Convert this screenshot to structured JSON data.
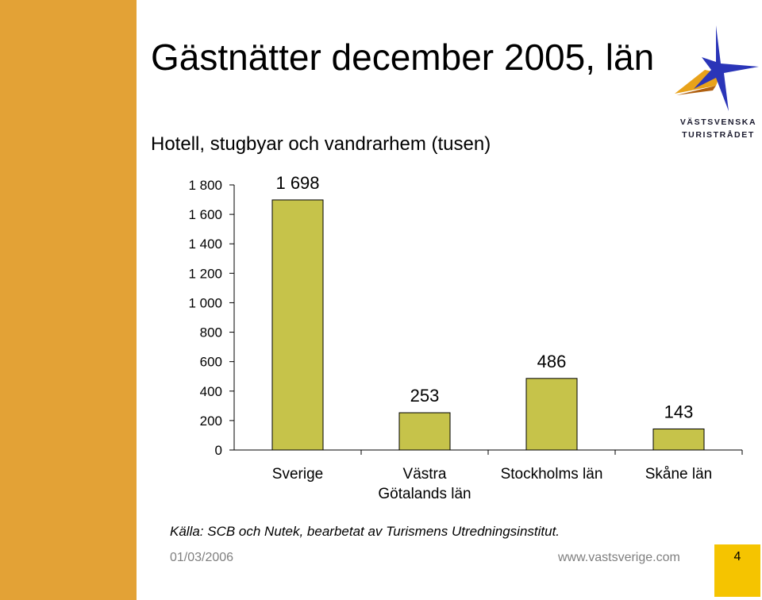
{
  "slide": {
    "title": "Gästnätter december 2005, län",
    "subtitle": "Hotell, stugbyar och vandrarhem (tusen)",
    "source": "Källa: SCB och Nutek, bearbetat av Turismens Utredningsinstitut.",
    "footer_date": "01/03/2006",
    "footer_url": "www.vastsverige.com",
    "page_number": "4"
  },
  "logo": {
    "line1": "VÄSTSVENSKA",
    "line2": "TURISTRÅDET",
    "icon": "star-logo-icon",
    "colors": {
      "star": "#2a35b8",
      "wing": "#e8a21a",
      "text": "#1a1a2e"
    }
  },
  "colors": {
    "sidebar": "#e3a236",
    "bar": "#c6c34a",
    "bar_border": "#000000",
    "page_box": "#f5c400",
    "footer_text": "#7f7f7f"
  },
  "chart_data": {
    "type": "bar",
    "categories": [
      [
        "Sverige"
      ],
      [
        "Västra",
        "Götalands län"
      ],
      [
        "Stockholms län"
      ],
      [
        "Skåne län"
      ]
    ],
    "values": [
      1698,
      253,
      486,
      143
    ],
    "data_labels": [
      "1 698",
      "253",
      "486",
      "143"
    ],
    "ylim": [
      0,
      1800
    ],
    "yticks": [
      0,
      200,
      400,
      600,
      800,
      1000,
      1200,
      1400,
      1600,
      1800
    ],
    "ytick_labels": [
      "0",
      "200",
      "400",
      "600",
      "800",
      "1 000",
      "1 200",
      "1 400",
      "1 600",
      "1 800"
    ],
    "grid": false,
    "legend": "none"
  }
}
